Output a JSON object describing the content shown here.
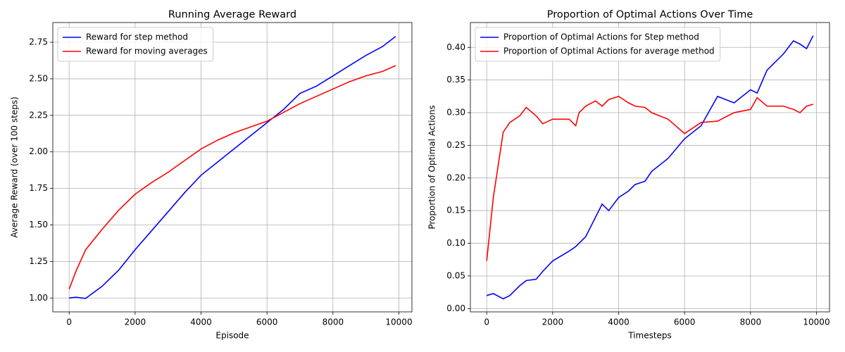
{
  "chart_data": [
    {
      "type": "line",
      "title": "Running Average Reward",
      "xlabel": "Episode",
      "ylabel": "Average Reward (over 100 steps)",
      "x": [
        0,
        200,
        500,
        1000,
        1500,
        2000,
        2500,
        3000,
        3500,
        4000,
        4500,
        5000,
        5500,
        6000,
        6500,
        7000,
        7500,
        8000,
        8500,
        9000,
        9500,
        9900
      ],
      "series": [
        {
          "name": "Reward for step method",
          "color": "#0000ff",
          "values": [
            1.0,
            1.005,
            0.997,
            1.08,
            1.19,
            1.33,
            1.46,
            1.59,
            1.72,
            1.84,
            1.93,
            2.02,
            2.11,
            2.2,
            2.29,
            2.4,
            2.45,
            2.52,
            2.59,
            2.66,
            2.72,
            2.79
          ]
        },
        {
          "name": "Reward for moving averages",
          "color": "#ff0000",
          "values": [
            1.06,
            1.18,
            1.33,
            1.47,
            1.6,
            1.71,
            1.79,
            1.86,
            1.94,
            2.02,
            2.08,
            2.13,
            2.17,
            2.21,
            2.27,
            2.33,
            2.38,
            2.43,
            2.48,
            2.52,
            2.55,
            2.59
          ]
        }
      ],
      "xlim": [
        -495,
        10395
      ],
      "xticks": [
        0,
        2000,
        4000,
        6000,
        8000,
        10000
      ],
      "ylim": [
        0.905,
        2.885
      ],
      "yticks": [
        {
          "value": 1,
          "label": "1.00"
        },
        1.25,
        {
          "value": 1.5,
          "label": "1.50"
        },
        1.75,
        {
          "value": 2,
          "label": "2.00"
        },
        2.25,
        {
          "value": 2.5,
          "label": "2.50"
        },
        2.75
      ],
      "grid": true,
      "legend": "upper-left"
    },
    {
      "type": "line",
      "title": "Proportion of Optimal Actions Over Time",
      "xlabel": "Timesteps",
      "ylabel": "Proportion of Optimal Actions",
      "x": [
        0,
        200,
        500,
        700,
        1000,
        1200,
        1500,
        1700,
        2000,
        2500,
        2700,
        2800,
        3000,
        3300,
        3500,
        3700,
        4000,
        4300,
        4500,
        4800,
        5000,
        5500,
        6000,
        6500,
        7000,
        7500,
        8000,
        8200,
        8500,
        9000,
        9300,
        9500,
        9700,
        9900
      ],
      "series": [
        {
          "name": "Proportion of Optimal Actions for Step method",
          "color": "#0000ff",
          "values": [
            0.02,
            0.023,
            0.015,
            0.02,
            0.035,
            0.043,
            0.045,
            0.057,
            0.073,
            0.088,
            0.095,
            0.1,
            0.11,
            0.14,
            0.16,
            0.15,
            0.17,
            0.18,
            0.19,
            0.195,
            0.21,
            0.23,
            0.26,
            0.28,
            0.325,
            0.315,
            0.335,
            0.33,
            0.365,
            0.39,
            0.41,
            0.405,
            0.398,
            0.418
          ]
        },
        {
          "name": "Proportion of Optimal Actions for average method",
          "color": "#ff0000",
          "values": [
            0.073,
            0.17,
            0.27,
            0.285,
            0.295,
            0.308,
            0.295,
            0.283,
            0.29,
            0.29,
            0.28,
            0.3,
            0.31,
            0.318,
            0.31,
            0.32,
            0.325,
            0.315,
            0.31,
            0.308,
            0.3,
            0.29,
            0.268,
            0.285,
            0.287,
            0.3,
            0.305,
            0.323,
            0.31,
            0.31,
            0.305,
            0.3,
            0.31,
            0.313
          ]
        }
      ],
      "xlim": [
        -495,
        10395
      ],
      "xticks": [
        0,
        2000,
        4000,
        6000,
        8000,
        10000
      ],
      "ylim": [
        -0.005,
        0.438
      ],
      "yticks": [
        {
          "value": 0,
          "label": "0.00"
        },
        0.05,
        {
          "value": 0.1,
          "label": "0.10"
        },
        0.15,
        {
          "value": 0.2,
          "label": "0.20"
        },
        0.25,
        {
          "value": 0.3,
          "label": "0.30"
        },
        0.35,
        {
          "value": 0.4,
          "label": "0.40"
        }
      ],
      "grid": true,
      "legend": "upper-left"
    }
  ]
}
